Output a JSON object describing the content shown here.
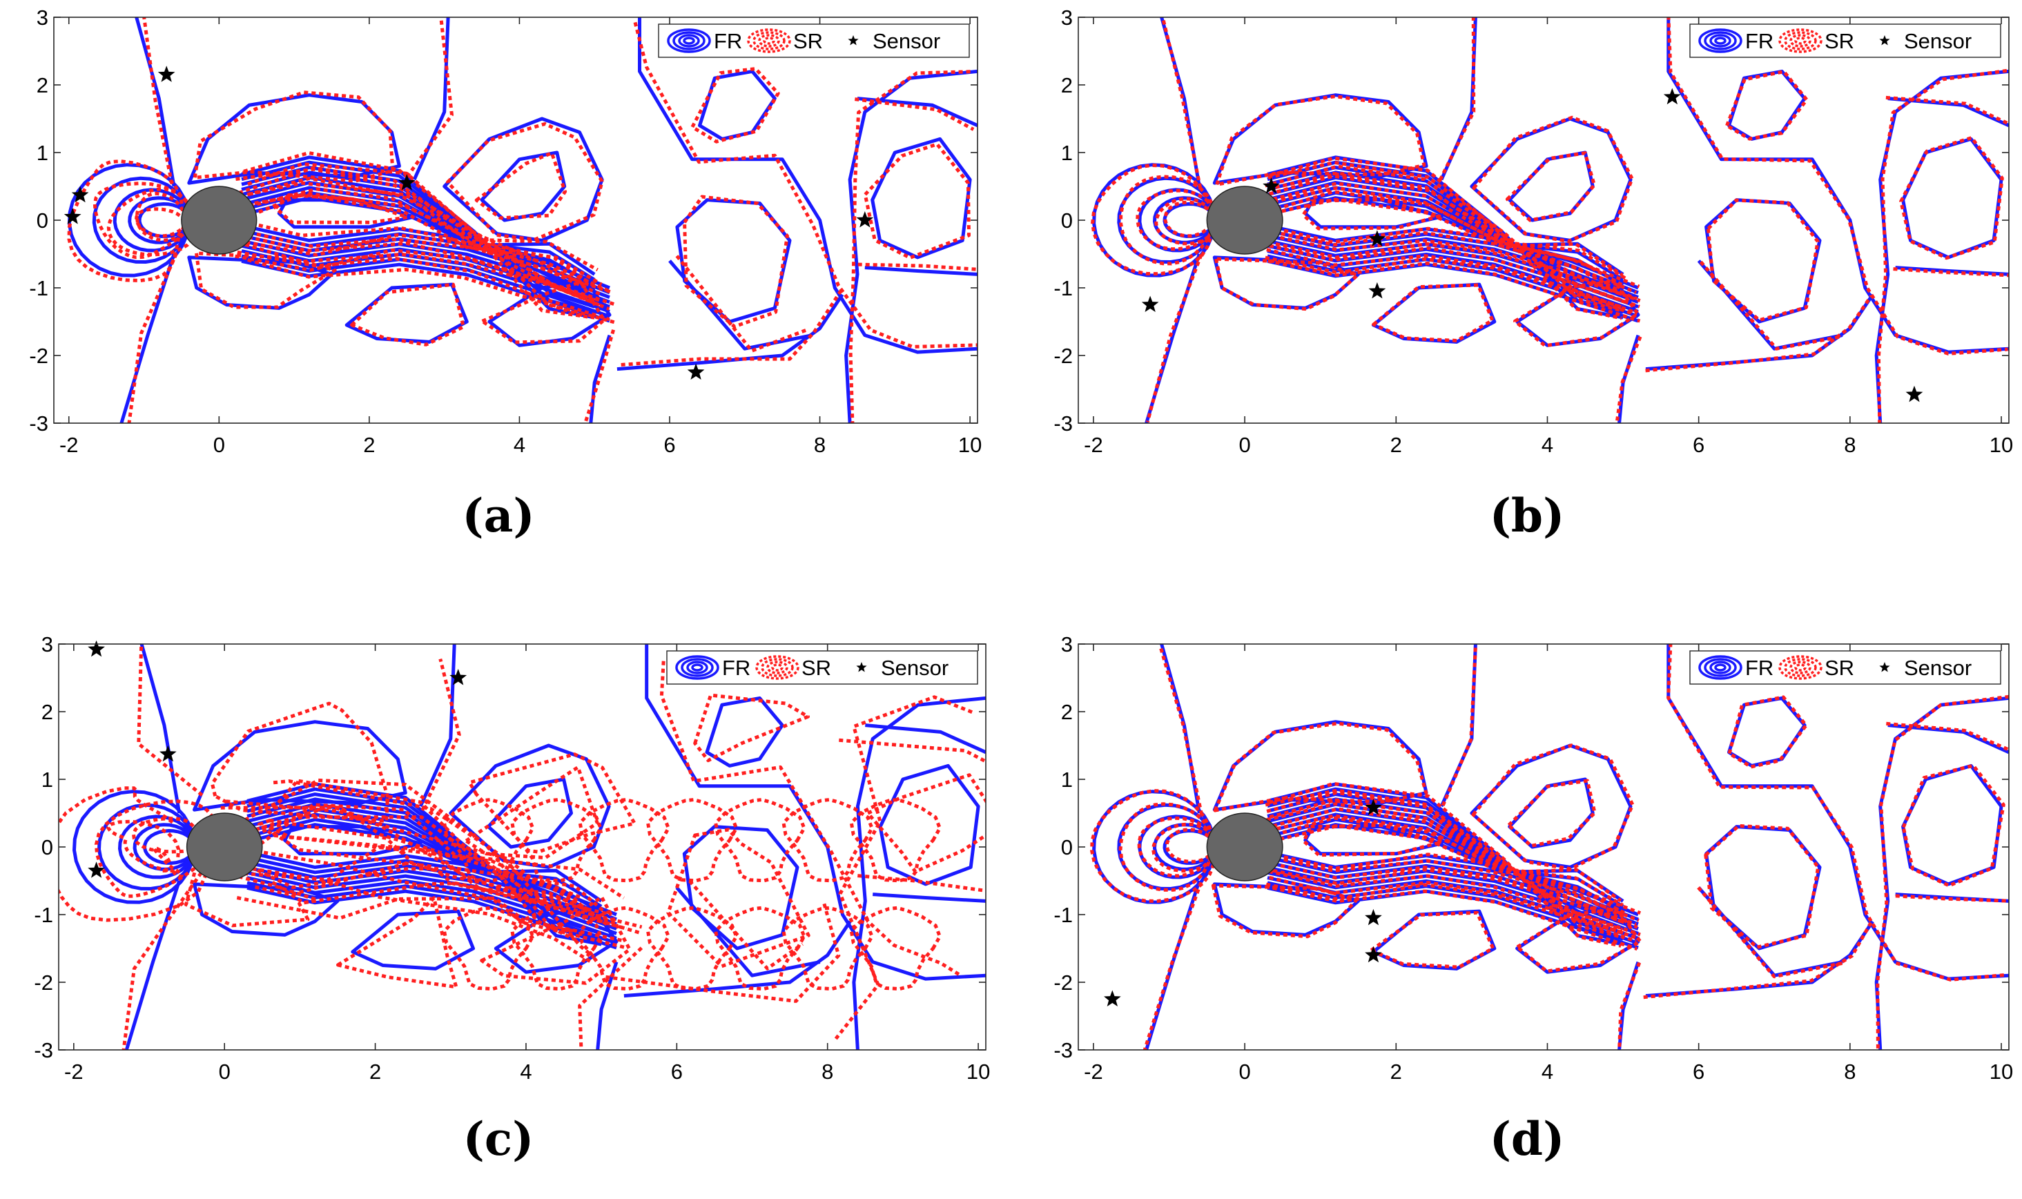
{
  "chart_data": [
    {
      "type": "contour",
      "panel_label": "(a)",
      "xlim": [
        -2.2,
        10.1
      ],
      "ylim": [
        -3,
        3
      ],
      "x_ticks": [
        "-2",
        "0",
        "2",
        "4",
        "6",
        "8",
        "10"
      ],
      "y_ticks": [
        "3",
        "2",
        "1",
        "0",
        "-1",
        "-2",
        "-3"
      ],
      "legend": [
        "FR",
        "SR",
        "Sensor"
      ],
      "series": [
        {
          "name": "FR",
          "color": "#1a1aff"
        },
        {
          "name": "SR",
          "color": "#ff1f1f"
        }
      ],
      "sr_deviation": 0.1,
      "sensors": [
        [
          -0.7,
          2.15
        ],
        [
          -1.85,
          0.37
        ],
        [
          -1.95,
          0.05
        ],
        [
          2.5,
          0.55
        ],
        [
          8.6,
          0.0
        ],
        [
          6.35,
          -2.25
        ]
      ]
    },
    {
      "type": "contour",
      "panel_label": "(b)",
      "xlim": [
        -2.2,
        10.1
      ],
      "ylim": [
        -3,
        3
      ],
      "x_ticks": [
        "-2",
        "0",
        "2",
        "4",
        "6",
        "8",
        "10"
      ],
      "y_ticks": [
        "3",
        "2",
        "1",
        "0",
        "-1",
        "-2",
        "-3"
      ],
      "legend": [
        "FR",
        "SR",
        "Sensor"
      ],
      "series": [
        {
          "name": "FR",
          "color": "#1a1aff"
        },
        {
          "name": "SR",
          "color": "#ff1f1f"
        }
      ],
      "sr_deviation": 0.03,
      "sensors": [
        [
          5.65,
          1.82
        ],
        [
          0.35,
          0.5
        ],
        [
          1.75,
          -0.28
        ],
        [
          1.75,
          -1.05
        ],
        [
          -1.25,
          -1.25
        ],
        [
          8.85,
          -2.58
        ]
      ]
    },
    {
      "type": "contour",
      "panel_label": "(c)",
      "xlim": [
        -2.2,
        10.1
      ],
      "ylim": [
        -3,
        3
      ],
      "x_ticks": [
        "-2",
        "0",
        "2",
        "4",
        "6",
        "8",
        "10"
      ],
      "y_ticks": [
        "3",
        "2",
        "1",
        "0",
        "-1",
        "-2",
        "-3"
      ],
      "legend": [
        "FR",
        "SR",
        "Sensor"
      ],
      "series": [
        {
          "name": "FR",
          "color": "#1a1aff"
        },
        {
          "name": "SR",
          "color": "#ff1f1f"
        }
      ],
      "sr_deviation": 0.35,
      "sensors": [
        [
          -1.7,
          2.92
        ],
        [
          3.1,
          2.5
        ],
        [
          -0.75,
          1.37
        ],
        [
          -1.7,
          -0.35
        ]
      ]
    },
    {
      "type": "contour",
      "panel_label": "(d)",
      "xlim": [
        -2.2,
        10.1
      ],
      "ylim": [
        -3,
        3
      ],
      "x_ticks": [
        "-2",
        "0",
        "2",
        "4",
        "6",
        "8",
        "10"
      ],
      "y_ticks": [
        "3",
        "2",
        "1",
        "0",
        "-1",
        "-2",
        "-3"
      ],
      "legend": [
        "FR",
        "SR",
        "Sensor"
      ],
      "series": [
        {
          "name": "FR",
          "color": "#1a1aff"
        },
        {
          "name": "SR",
          "color": "#ff1f1f"
        }
      ],
      "sr_deviation": 0.03,
      "sensors": [
        [
          1.7,
          0.58
        ],
        [
          1.7,
          -1.05
        ],
        [
          1.7,
          -1.6
        ],
        [
          -1.75,
          -2.25
        ]
      ]
    }
  ]
}
